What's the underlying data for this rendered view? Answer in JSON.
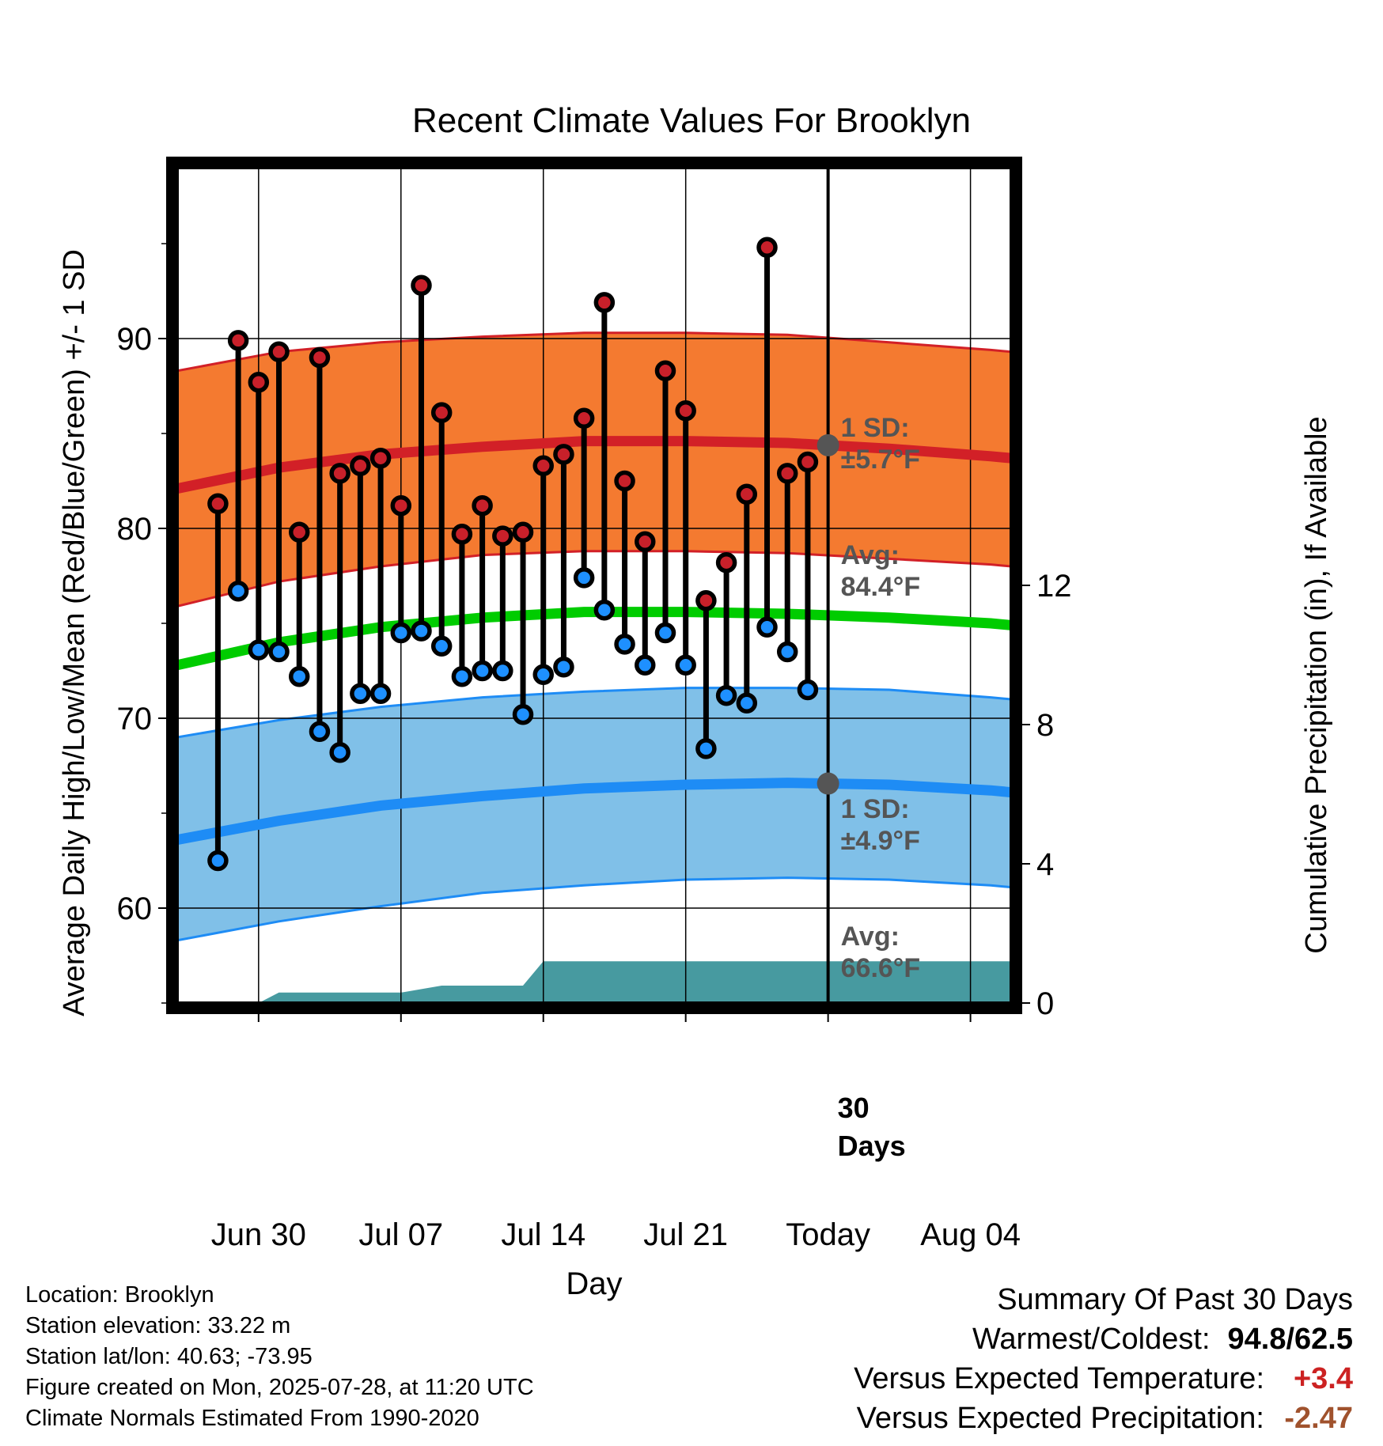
{
  "title": "Recent Climate Values For Brooklyn",
  "chart_data": {
    "type": "line",
    "title": "Recent Climate Values For Brooklyn",
    "xlabel": "Day",
    "ylabel": "Average Daily High/Low/Mean (Red/Blue/Green) +/- 1 SD",
    "y2label": "Cumulative Precipitation (in), If Available",
    "ylim": [
      55,
      99
    ],
    "y2lim": [
      0,
      24
    ],
    "xlim": [
      "2025-06-26",
      "2025-08-06"
    ],
    "grid": true,
    "x_ticks": [
      {
        "date": "2025-06-30",
        "label": "Jun 30"
      },
      {
        "date": "2025-07-07",
        "label": "Jul 07"
      },
      {
        "date": "2025-07-14",
        "label": "Jul 14"
      },
      {
        "date": "2025-07-21",
        "label": "Jul 21"
      },
      {
        "date": "2025-07-28",
        "label": "Today"
      },
      {
        "date": "2025-08-04",
        "label": "Aug 04"
      }
    ],
    "y_ticks": [
      "60",
      "70",
      "80",
      "90"
    ],
    "y2_ticks": [
      "0",
      "4",
      "8",
      "12"
    ],
    "observed": {
      "dates": [
        "2025-06-28",
        "2025-06-29",
        "2025-06-30",
        "2025-07-01",
        "2025-07-02",
        "2025-07-03",
        "2025-07-04",
        "2025-07-05",
        "2025-07-06",
        "2025-07-07",
        "2025-07-08",
        "2025-07-09",
        "2025-07-10",
        "2025-07-11",
        "2025-07-12",
        "2025-07-13",
        "2025-07-14",
        "2025-07-15",
        "2025-07-16",
        "2025-07-17",
        "2025-07-18",
        "2025-07-19",
        "2025-07-20",
        "2025-07-21",
        "2025-07-22",
        "2025-07-23",
        "2025-07-24",
        "2025-07-25",
        "2025-07-26",
        "2025-07-27"
      ],
      "high": [
        81.3,
        89.9,
        87.7,
        89.3,
        79.8,
        89.0,
        82.9,
        83.3,
        83.7,
        81.2,
        92.8,
        86.1,
        79.7,
        81.2,
        79.6,
        79.8,
        83.3,
        83.9,
        85.8,
        91.9,
        82.5,
        79.3,
        88.3,
        86.2,
        76.2,
        78.2,
        81.8,
        94.8,
        82.9,
        83.5
      ],
      "low": [
        62.5,
        76.7,
        73.6,
        73.5,
        72.2,
        69.3,
        68.2,
        71.3,
        71.3,
        74.5,
        74.6,
        73.8,
        72.2,
        72.5,
        72.5,
        70.2,
        72.3,
        72.7,
        77.4,
        75.7,
        73.9,
        72.8,
        74.5,
        72.8,
        68.4,
        71.2,
        70.8,
        74.8,
        73.5,
        71.5
      ]
    },
    "normals": {
      "dates": [
        "2025-06-26",
        "2025-07-01",
        "2025-07-06",
        "2025-07-11",
        "2025-07-16",
        "2025-07-21",
        "2025-07-26",
        "2025-07-31",
        "2025-08-05",
        "2025-08-06"
      ],
      "high_mean": [
        82.1,
        83.2,
        83.9,
        84.3,
        84.6,
        84.6,
        84.5,
        84.2,
        83.8,
        83.7
      ],
      "high_upper": [
        88.3,
        89.3,
        89.8,
        90.1,
        90.3,
        90.3,
        90.2,
        89.8,
        89.4,
        89.3
      ],
      "high_lower": [
        75.9,
        77.2,
        78.0,
        78.6,
        78.8,
        78.8,
        78.7,
        78.4,
        78.1,
        78.0
      ],
      "mean": [
        72.8,
        74.0,
        74.8,
        75.3,
        75.6,
        75.6,
        75.5,
        75.3,
        75.0,
        74.9
      ],
      "low_mean": [
        63.6,
        64.6,
        65.4,
        65.9,
        66.3,
        66.5,
        66.6,
        66.5,
        66.2,
        66.1
      ],
      "low_upper": [
        69.0,
        69.9,
        70.6,
        71.1,
        71.4,
        71.6,
        71.6,
        71.5,
        71.1,
        71.0
      ],
      "low_lower": [
        58.3,
        59.3,
        60.1,
        60.8,
        61.2,
        61.5,
        61.6,
        61.5,
        61.2,
        61.1
      ]
    },
    "precipitation": {
      "dates": [
        "2025-06-26",
        "2025-06-30",
        "2025-07-01",
        "2025-07-07",
        "2025-07-09",
        "2025-07-13",
        "2025-07-14",
        "2025-07-28",
        "2025-08-06"
      ],
      "cumulative": [
        0,
        0,
        0.3,
        0.3,
        0.5,
        0.5,
        1.2,
        1.2,
        1.2
      ]
    },
    "annotations": {
      "high_sd": "1 SD:",
      "high_sd_value": "±5.7°F",
      "high_avg": "Avg:",
      "high_avg_value": "84.4°F",
      "low_sd": "1 SD:",
      "low_sd_value": "±4.9°F",
      "low_avg": "Avg:",
      "low_avg_value": "66.6°F",
      "window_line1": "30",
      "window_line2": "Days"
    },
    "colors": {
      "high_band": "#f47a30",
      "high_line": "#d22027",
      "mean_line": "#00cc00",
      "low_band": "#80c0e8",
      "low_line": "#1e8cf5",
      "precip": "#479aa0",
      "high_marker": "#c8202a",
      "low_marker": "#1e90ff",
      "annotation_text": "#555555"
    }
  },
  "info": {
    "location": "Location: Brooklyn",
    "elevation": "Station elevation: 33.22 m",
    "latlon": "Station lat/lon: 40.63; -73.95",
    "created": "Figure created on Mon, 2025-07-28, at 11:20 UTC",
    "normals_period": "Climate Normals Estimated From 1990-2020"
  },
  "summary": {
    "heading": "Summary Of Past 30 Days",
    "warmest_coldest_label": "Warmest/Coldest:",
    "warmest_coldest_value": "94.8/62.5",
    "temp_label": "Versus Expected Temperature:",
    "temp_value": "+3.4",
    "temp_color": "#cc2222",
    "precip_label": "Versus Expected Precipitation:",
    "precip_value": "-2.47",
    "precip_color": "#a0522d"
  }
}
